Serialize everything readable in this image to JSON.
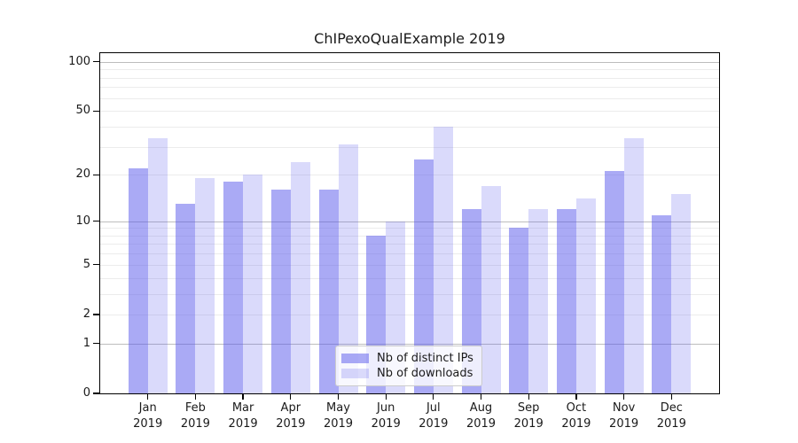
{
  "title": "ChIPexoQualExample 2019",
  "colors": {
    "figure_bg": "#ffffff",
    "bar_base_rgb": "85,85,235",
    "bar_dark_alpha": 0.5,
    "bar_light_alpha": 0.22,
    "bar_dark_rendered": "#aaaaf5",
    "bar_light_rendered": "#dadafb",
    "grid_major": "#bdbdbd",
    "grid_minor": "#ececec",
    "axis": "#000000",
    "text": "#1a1a1a",
    "legend_border": "#cccccc"
  },
  "legend": {
    "position": "lower center",
    "items": [
      {
        "label": "Nb of distinct IPs",
        "swatch": "dark"
      },
      {
        "label": "Nb of downloads",
        "swatch": "light"
      }
    ]
  },
  "chart_data": {
    "type": "bar",
    "title": "ChIPexoQualExample 2019",
    "categories": [
      "Jan 2019",
      "Feb 2019",
      "Mar 2019",
      "Apr 2019",
      "May 2019",
      "Jun 2019",
      "Jul 2019",
      "Aug 2019",
      "Sep 2019",
      "Oct 2019",
      "Nov 2019",
      "Dec 2019"
    ],
    "series": [
      {
        "name": "Nb of distinct IPs",
        "shade": "dark",
        "values": [
          22,
          13,
          18,
          16,
          16,
          8,
          25,
          12,
          9,
          12,
          21,
          11
        ]
      },
      {
        "name": "Nb of downloads",
        "shade": "light",
        "values": [
          34,
          19,
          20,
          24,
          31,
          10,
          40,
          17,
          12,
          14,
          34,
          15
        ]
      }
    ],
    "xlabel": "",
    "ylabel": "",
    "yscale": "log1p",
    "ylim": [
      0,
      113
    ],
    "yticks": [
      0,
      1,
      2,
      5,
      10,
      20,
      50,
      100
    ],
    "major_gridlines": [
      1,
      10,
      100
    ],
    "minor_gridlines": [
      2,
      3,
      4,
      5,
      6,
      7,
      8,
      9,
      20,
      30,
      40,
      50,
      60,
      70,
      80,
      90
    ],
    "grid": true,
    "legend_position": "lower center"
  }
}
